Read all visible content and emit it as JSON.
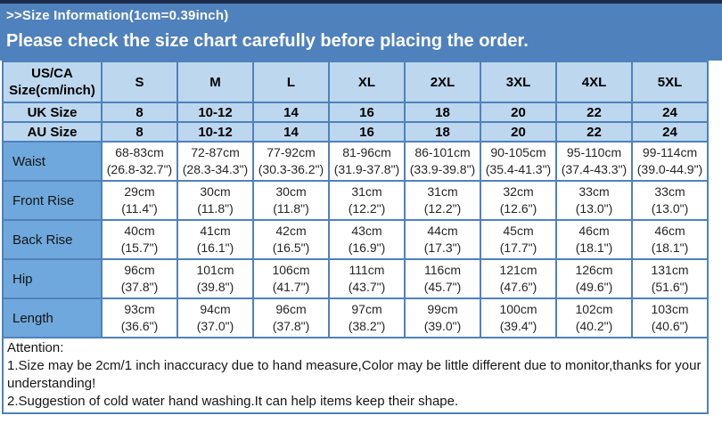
{
  "banner": {
    "title": ">>Size Information(1cm=0.39inch)",
    "subtitle": "Please check the size chart carefully before placing the order."
  },
  "table": {
    "corner_label": "US/CA Size(cm/inch)",
    "size_headers": [
      "S",
      "M",
      "L",
      "XL",
      "2XL",
      "3XL",
      "4XL",
      "5XL"
    ],
    "uk_row": {
      "label": "UK Size",
      "values": [
        "8",
        "10-12",
        "14",
        "16",
        "18",
        "20",
        "22",
        "24"
      ]
    },
    "au_row": {
      "label": "AU Size",
      "values": [
        "8",
        "10-12",
        "14",
        "16",
        "18",
        "20",
        "22",
        "24"
      ]
    },
    "measure_rows": [
      {
        "label": "Waist",
        "values": [
          {
            "cm": "68-83cm",
            "inch": "(26.8-32.7\")"
          },
          {
            "cm": "72-87cm",
            "inch": "(28.3-34.3\")"
          },
          {
            "cm": "77-92cm",
            "inch": "(30.3-36.2\")"
          },
          {
            "cm": "81-96cm",
            "inch": "(31.9-37.8\")"
          },
          {
            "cm": "86-101cm",
            "inch": "(33.9-39.8\")"
          },
          {
            "cm": "90-105cm",
            "inch": "(35.4-41.3\")"
          },
          {
            "cm": "95-110cm",
            "inch": "(37.4-43.3\")"
          },
          {
            "cm": "99-114cm",
            "inch": "(39.0-44.9\")"
          }
        ]
      },
      {
        "label": "Front Rise",
        "values": [
          {
            "cm": "29cm",
            "inch": "(11.4\")"
          },
          {
            "cm": "30cm",
            "inch": "(11.8\")"
          },
          {
            "cm": "30cm",
            "inch": "(11.8\")"
          },
          {
            "cm": "31cm",
            "inch": "(12.2\")"
          },
          {
            "cm": "31cm",
            "inch": "(12.2\")"
          },
          {
            "cm": "32cm",
            "inch": "(12.6\")"
          },
          {
            "cm": "33cm",
            "inch": "(13.0\")"
          },
          {
            "cm": "33cm",
            "inch": "(13.0\")"
          }
        ]
      },
      {
        "label": "Back Rise",
        "values": [
          {
            "cm": "40cm",
            "inch": "(15.7\")"
          },
          {
            "cm": "41cm",
            "inch": "(16.1\")"
          },
          {
            "cm": "42cm",
            "inch": "(16.5\")"
          },
          {
            "cm": "43cm",
            "inch": "(16.9\")"
          },
          {
            "cm": "44cm",
            "inch": "(17.3\")"
          },
          {
            "cm": "45cm",
            "inch": "(17.7\")"
          },
          {
            "cm": "46cm",
            "inch": "(18.1\")"
          },
          {
            "cm": "46cm",
            "inch": "(18.1\")"
          }
        ]
      },
      {
        "label": "Hip",
        "values": [
          {
            "cm": "96cm",
            "inch": "(37.8\")"
          },
          {
            "cm": "101cm",
            "inch": "(39.8\")"
          },
          {
            "cm": "106cm",
            "inch": "(41.7\")"
          },
          {
            "cm": "111cm",
            "inch": "(43.7\")"
          },
          {
            "cm": "116cm",
            "inch": "(45.7\")"
          },
          {
            "cm": "121cm",
            "inch": "(47.6\")"
          },
          {
            "cm": "126cm",
            "inch": "(49.6\")"
          },
          {
            "cm": "131cm",
            "inch": "(51.6\")"
          }
        ]
      },
      {
        "label": "Length",
        "values": [
          {
            "cm": "93cm",
            "inch": "(36.6\")"
          },
          {
            "cm": "94cm",
            "inch": "(37.0\")"
          },
          {
            "cm": "96cm",
            "inch": "(37.8\")"
          },
          {
            "cm": "97cm",
            "inch": "(38.2\")"
          },
          {
            "cm": "99cm",
            "inch": "(39.0\")"
          },
          {
            "cm": "100cm",
            "inch": "(39.4\")"
          },
          {
            "cm": "102cm",
            "inch": "(40.2\")"
          },
          {
            "cm": "103cm",
            "inch": "(40.6\")"
          }
        ]
      }
    ]
  },
  "attention": {
    "title": "Attention:",
    "lines": [
      "1.Size may be 2cm/1 inch inaccuracy due to hand measure,Color may be little different due to monitor,thanks for your understanding!",
      "2.Suggestion of cold water hand washing.It can help items keep their shape."
    ]
  },
  "colors": {
    "banner_blue": "#4f81bd",
    "top_border_navy": "#1c2b4a",
    "header_cell_blue": "#bdd7ee",
    "label_cell_blue": "#6fa8dc",
    "grid_border_blue": "#4f81bd",
    "banner_text": "#ffffff",
    "table_text": "#1a1a1a"
  }
}
